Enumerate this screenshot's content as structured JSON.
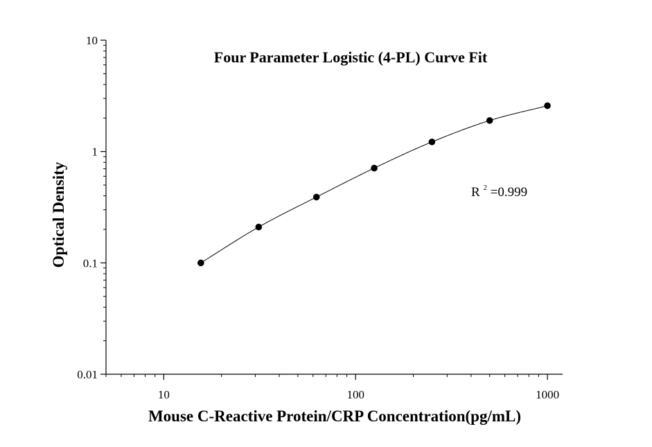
{
  "chart_data": {
    "type": "scatter",
    "title": "Four Parameter Logistic (4-PL) Curve Fit",
    "xlabel": "Mouse C-Reactive Protein/CRP Concentration(pg/mL)",
    "ylabel": "Optical Density",
    "xscale": "log",
    "yscale": "log",
    "xlim": [
      5,
      1200
    ],
    "ylim": [
      0.01,
      10
    ],
    "x_ticks": [
      {
        "value": 10,
        "label": "10"
      },
      {
        "value": 100,
        "label": "100"
      },
      {
        "value": 1000,
        "label": "1000"
      }
    ],
    "y_ticks": [
      {
        "value": 0.01,
        "label": "0.01"
      },
      {
        "value": 0.1,
        "label": "0.1"
      },
      {
        "value": 1,
        "label": "1"
      },
      {
        "value": 10,
        "label": "10"
      }
    ],
    "grid": false,
    "legend": "none",
    "series": [
      {
        "x": [
          15.6,
          31.25,
          62.5,
          125,
          250,
          500,
          1000
        ],
        "y": [
          0.1,
          0.21,
          0.39,
          0.71,
          1.22,
          1.9,
          2.58
        ],
        "marker": "filled-circle",
        "color": "#000000"
      }
    ],
    "fit": {
      "model": "4-PL",
      "x_range": [
        15.6,
        1000
      ],
      "color": "#000000"
    },
    "annotations": [
      {
        "base": "R",
        "superscript": "2",
        "text": "=0.999"
      }
    ]
  }
}
